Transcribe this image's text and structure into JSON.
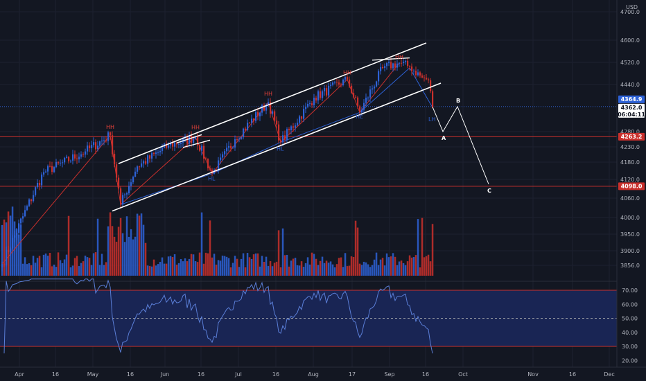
{
  "chart_data": {
    "type": "candlestick",
    "currency": "USD",
    "price_axis": {
      "min": 3820,
      "max": 4730,
      "ticks": [
        "4700.0",
        "4600.0",
        "4520.0",
        "4440.0",
        "4280.0",
        "4230.0",
        "4180.0",
        "4120.0",
        "4060.0",
        "4000.0",
        "3950.0",
        "3900.0",
        "3856.0"
      ]
    },
    "rsi_axis": {
      "min": 15,
      "max": 75,
      "ticks": [
        "70.00",
        "60.00",
        "50.00",
        "40.00",
        "30.00",
        "20.00"
      ]
    },
    "time_axis": {
      "labels": [
        "Apr",
        "16",
        "May",
        "16",
        "Jun",
        "16",
        "Jul",
        "16",
        "Aug",
        "17",
        "Sep",
        "16",
        "Oct",
        "Nov",
        "16",
        "Dec"
      ]
    },
    "last_price": {
      "label": "4364.9",
      "value": 4364.9,
      "current": "4362.0",
      "countdown": "06:04:11"
    },
    "levels": [
      {
        "label": "4263.2",
        "value": 4263.2
      },
      {
        "label": "4098.0",
        "value": 4098.0
      }
    ],
    "swing_labels": [
      {
        "text": "HH",
        "bar": 52,
        "price": 4290,
        "color": "red"
      },
      {
        "text": "HH",
        "bar": 93,
        "price": 4288,
        "color": "red"
      },
      {
        "text": "HL",
        "bar": 101,
        "price": 4117,
        "color": "blue"
      },
      {
        "text": "HH",
        "bar": 128,
        "price": 4402,
        "color": "red"
      },
      {
        "text": "HL",
        "bar": 134,
        "price": 4218,
        "color": "blue"
      },
      {
        "text": "HH",
        "bar": 166,
        "price": 4476,
        "color": "red"
      },
      {
        "text": "HL",
        "bar": 172,
        "price": 4325,
        "color": "blue"
      },
      {
        "text": "HH",
        "bar": 191,
        "price": 4532,
        "color": "red"
      },
      {
        "text": "LH",
        "bar": 207,
        "price": 4315,
        "color": "blue"
      }
    ],
    "projection": [
      {
        "label": "",
        "bar": 207,
        "price": 4364
      },
      {
        "label": "A",
        "bar": 212,
        "price": 4280
      },
      {
        "label": "B",
        "bar": 219,
        "price": 4365
      },
      {
        "label": "C",
        "bar": 234,
        "price": 4105
      }
    ],
    "channel": {
      "upper": [
        {
          "bar": 56,
          "price": 4175
        },
        {
          "bar": 204,
          "price": 4590
        }
      ],
      "lower": [
        {
          "bar": 53,
          "price": 4020
        },
        {
          "bar": 211,
          "price": 4445
        }
      ]
    },
    "mini_lines": [
      [
        {
          "bar": 84,
          "price": 4243
        },
        {
          "bar": 96,
          "price": 4270
        }
      ],
      [
        {
          "bar": 87,
          "price": 4228
        },
        {
          "bar": 100,
          "price": 4252
        }
      ],
      [
        {
          "bar": 178,
          "price": 4528
        },
        {
          "bar": 196,
          "price": 4536
        }
      ]
    ],
    "zigzag_red": [
      {
        "bar": 0,
        "price": 3860
      },
      {
        "bar": 52,
        "price": 4268
      },
      {
        "bar": 57,
        "price": 4040
      },
      {
        "bar": 93,
        "price": 4262
      },
      {
        "bar": 101,
        "price": 4140
      },
      {
        "bar": 128,
        "price": 4380
      },
      {
        "bar": 134,
        "price": 4245
      },
      {
        "bar": 166,
        "price": 4458
      },
      {
        "bar": 172,
        "price": 4345
      },
      {
        "bar": 191,
        "price": 4518
      }
    ],
    "zigzag_blue": [
      {
        "bar": 57,
        "price": 4040
      },
      {
        "bar": 101,
        "price": 4140
      },
      {
        "bar": 134,
        "price": 4245
      },
      {
        "bar": 172,
        "price": 4345
      },
      {
        "bar": 196,
        "price": 4500
      },
      {
        "bar": 207,
        "price": 4362
      }
    ],
    "anchors": [
      {
        "bar": 0,
        "price": 3860
      },
      {
        "bar": 20,
        "price": 4145
      },
      {
        "bar": 40,
        "price": 4215
      },
      {
        "bar": 52,
        "price": 4268
      },
      {
        "bar": 57,
        "price": 4040
      },
      {
        "bar": 65,
        "price": 4165
      },
      {
        "bar": 80,
        "price": 4235
      },
      {
        "bar": 93,
        "price": 4262
      },
      {
        "bar": 101,
        "price": 4140
      },
      {
        "bar": 112,
        "price": 4255
      },
      {
        "bar": 128,
        "price": 4380
      },
      {
        "bar": 134,
        "price": 4245
      },
      {
        "bar": 150,
        "price": 4395
      },
      {
        "bar": 166,
        "price": 4458
      },
      {
        "bar": 172,
        "price": 4345
      },
      {
        "bar": 183,
        "price": 4500
      },
      {
        "bar": 191,
        "price": 4518
      },
      {
        "bar": 196,
        "price": 4505
      },
      {
        "bar": 202,
        "price": 4465
      },
      {
        "bar": 205,
        "price": 4455
      },
      {
        "bar": 207,
        "price": 4362
      }
    ],
    "bar_count": 208,
    "colors": {
      "background": "#131722",
      "up": "#2e62d6",
      "down": "#c9302c",
      "rsi_line": "#5b7fd8",
      "rsi_band": "#192554",
      "level": "#c9302c",
      "last_price": "#2e62d6",
      "channel": "#ffffff",
      "projection": "#ffffff"
    }
  }
}
